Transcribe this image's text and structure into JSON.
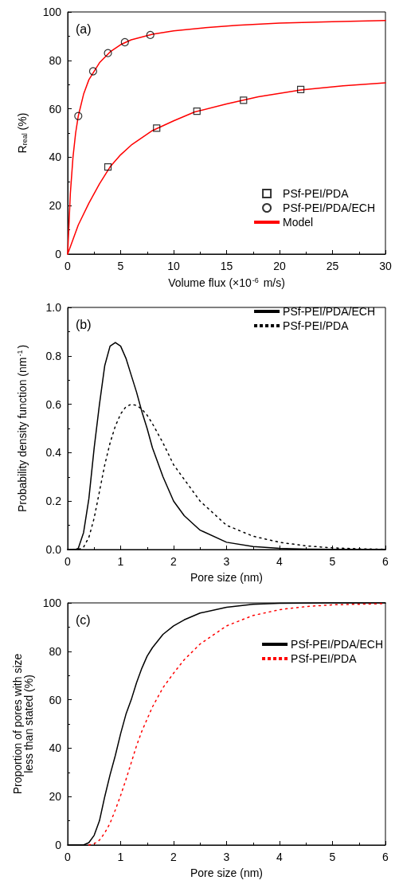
{
  "chart_data": [
    {
      "type": "scatter",
      "annotations": [
        "(a)"
      ],
      "xlabel": "Volume flux (×10$^{-6}$ m/s)",
      "ylabel": "R$_{real}$ (%)",
      "xlim": [
        0,
        30
      ],
      "xticks": [
        0,
        5,
        10,
        15,
        20,
        25,
        30
      ],
      "ylim": [
        0,
        100
      ],
      "yticks": [
        0,
        20,
        40,
        60,
        80,
        100
      ],
      "grid": false,
      "legend": "bottom right",
      "series": [
        {
          "name": "PSf-PEI/PDA",
          "marker": "square",
          "color": "#000000",
          "x": [
            3.8,
            8.4,
            12.2,
            16.6,
            22
          ],
          "values": [
            36,
            52,
            59,
            63.5,
            68
          ]
        },
        {
          "name": "PSf-PEI/PDA/ECH",
          "marker": "circle",
          "color": "#000000",
          "x": [
            1,
            2.4,
            3.8,
            5.4,
            7.8
          ],
          "values": [
            57,
            75.5,
            83,
            87.5,
            90.5
          ]
        },
        {
          "name": "Model",
          "type": "line",
          "marker": "none",
          "line_style": "solid",
          "color": "#ff0000",
          "x": [
            0,
            0.25,
            0.5,
            0.75,
            1,
            1.5,
            2,
            3,
            4,
            5,
            6,
            8,
            10,
            13,
            16,
            20,
            25,
            30
          ],
          "values": [
            0,
            25,
            40,
            50,
            57,
            66,
            72,
            79,
            83.5,
            86.5,
            88.5,
            90.8,
            92.2,
            93.5,
            94.5,
            95.4,
            96,
            96.5
          ]
        },
        {
          "type": "line",
          "marker": "none",
          "line_style": "solid",
          "color": "#ff0000",
          "x": [
            0,
            1,
            2,
            3,
            4,
            5,
            6,
            8,
            10,
            12,
            15,
            18,
            22,
            26,
            30
          ],
          "values": [
            0,
            12,
            21,
            29,
            36,
            41,
            45,
            51,
            55,
            58.7,
            62,
            65,
            67.8,
            69.5,
            70.7
          ]
        }
      ]
    },
    {
      "type": "line",
      "annotations": [
        "(b)"
      ],
      "xlabel": "Pore size (nm)",
      "ylabel": "Probability density function (nm$^{-1}$)",
      "xlim": [
        0,
        6
      ],
      "xticks": [
        0,
        1,
        2,
        3,
        4,
        5,
        6
      ],
      "ylim": [
        0,
        1
      ],
      "yticks": [
        {
          "value": 0,
          "label": "0.0"
        },
        {
          "value": 0.2,
          "label": "0.2"
        },
        {
          "value": 0.4,
          "label": "0.4"
        },
        {
          "value": 0.6,
          "label": "0.6"
        },
        {
          "value": 0.8,
          "label": "0.8"
        },
        {
          "value": 1,
          "label": "1.0"
        }
      ],
      "grid": false,
      "legend": "top right",
      "series": [
        {
          "name": "PSf-PEI/PDA/ECH",
          "marker": "none",
          "line_style": "solid",
          "color": "#000000",
          "x": [
            0,
            0.15,
            0.2,
            0.3,
            0.4,
            0.5,
            0.6,
            0.7,
            0.8,
            0.9,
            1.0,
            1.1,
            1.2,
            1.3,
            1.4,
            1.5,
            1.6,
            1.8,
            2.0,
            2.2,
            2.5,
            3,
            3.5,
            4,
            4.5,
            5,
            6
          ],
          "values": [
            0,
            0,
            0.005,
            0.07,
            0.21,
            0.42,
            0.6,
            0.76,
            0.84,
            0.855,
            0.84,
            0.79,
            0.72,
            0.65,
            0.57,
            0.5,
            0.42,
            0.3,
            0.2,
            0.14,
            0.08,
            0.03,
            0.012,
            0.005,
            0.002,
            0.001,
            0
          ]
        },
        {
          "name": "PSf-PEI/PDA",
          "marker": "none",
          "line_style": "dotted",
          "color": "#000000",
          "x": [
            0,
            0.2,
            0.3,
            0.4,
            0.5,
            0.6,
            0.7,
            0.8,
            0.9,
            1.0,
            1.1,
            1.2,
            1.3,
            1.4,
            1.5,
            1.6,
            1.8,
            2.0,
            2.2,
            2.5,
            3,
            3.5,
            4,
            4.5,
            5,
            5.5,
            6
          ],
          "values": [
            0,
            0,
            0.01,
            0.05,
            0.13,
            0.24,
            0.35,
            0.44,
            0.51,
            0.56,
            0.59,
            0.6,
            0.595,
            0.58,
            0.555,
            0.52,
            0.44,
            0.35,
            0.29,
            0.2,
            0.1,
            0.055,
            0.03,
            0.015,
            0.007,
            0.003,
            0.001
          ]
        }
      ]
    },
    {
      "type": "line",
      "annotations": [
        "(c)"
      ],
      "xlabel": "Pore size (nm)",
      "ylabel": "Proportion of pores with size\nless than stated (%)",
      "xlim": [
        0,
        6
      ],
      "xticks": [
        0,
        1,
        2,
        3,
        4,
        5,
        6
      ],
      "ylim": [
        0,
        100
      ],
      "yticks": [
        0,
        20,
        40,
        60,
        80,
        100
      ],
      "grid": false,
      "legend": "right",
      "series": [
        {
          "name": "PSf-PEI/PDA/ECH",
          "marker": "none",
          "line_style": "solid",
          "color": "#000000",
          "x": [
            0,
            0.3,
            0.4,
            0.5,
            0.6,
            0.7,
            0.8,
            0.9,
            1.0,
            1.1,
            1.2,
            1.3,
            1.4,
            1.5,
            1.6,
            1.8,
            2.0,
            2.2,
            2.5,
            3,
            3.5,
            4,
            5,
            6
          ],
          "values": [
            0,
            0,
            1,
            4,
            10,
            20,
            29,
            37,
            46,
            54,
            60,
            67,
            73,
            78,
            81.5,
            87,
            90.5,
            93,
            95.8,
            98.2,
            99.4,
            99.8,
            100,
            100
          ]
        },
        {
          "name": "PSf-PEI/PDA",
          "marker": "none",
          "line_style": "dotted",
          "color": "#ff0000",
          "x": [
            0.4,
            0.5,
            0.6,
            0.7,
            0.8,
            0.9,
            1.0,
            1.1,
            1.2,
            1.3,
            1.4,
            1.5,
            1.6,
            1.8,
            2.0,
            2.2,
            2.5,
            3,
            3.5,
            4,
            4.5,
            5,
            6
          ],
          "values": [
            0,
            0.5,
            2,
            5,
            9,
            14.5,
            20.5,
            27,
            34,
            41,
            47,
            52,
            57,
            65,
            71,
            76.5,
            83,
            90.5,
            94.8,
            97.2,
            98.5,
            99.2,
            99.7
          ]
        }
      ]
    }
  ]
}
